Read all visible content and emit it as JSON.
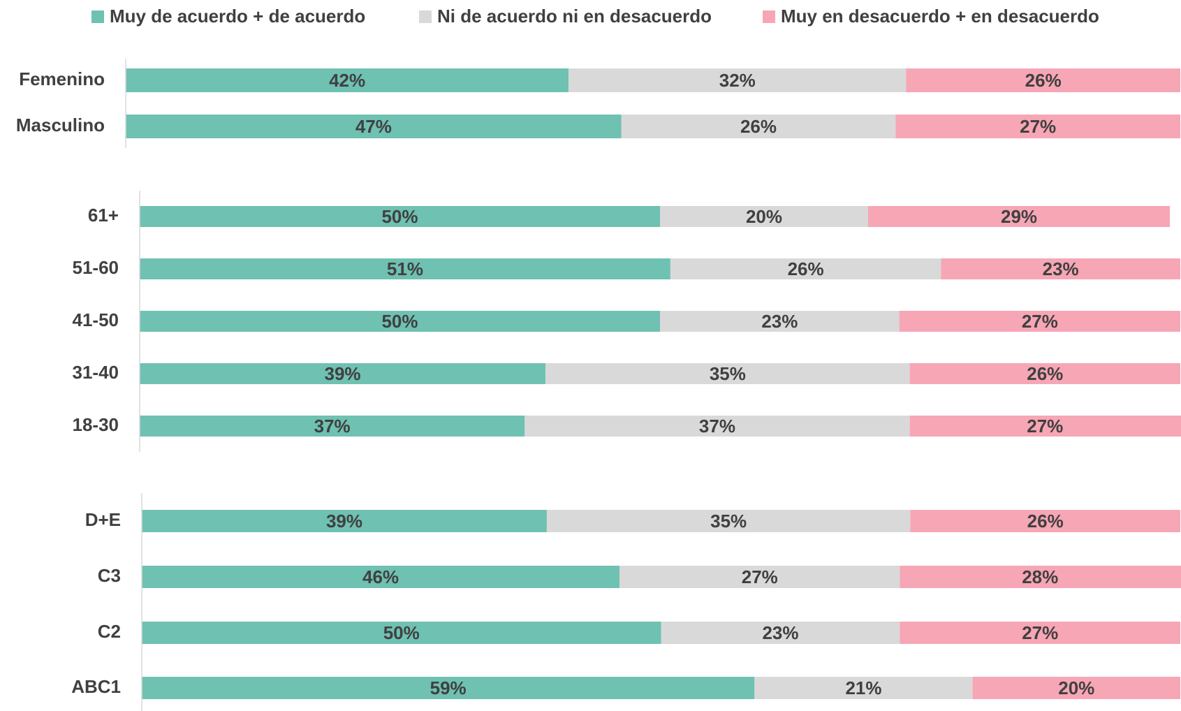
{
  "chart_data": {
    "type": "stacked_bar_100",
    "xlim": [
      0,
      100
    ],
    "categories": [
      [
        "Femenino",
        "Masculino"
      ],
      [
        "61+",
        "51-60",
        "41-50",
        "31-40",
        "18-30"
      ],
      [
        "D+E",
        "C3",
        "C2",
        "ABC1"
      ]
    ],
    "series": [
      {
        "name": "Muy de acuerdo + de acuerdo",
        "color": "#6fc1b2",
        "values": [
          [
            42,
            47
          ],
          [
            50,
            51,
            50,
            39,
            37
          ],
          [
            39,
            46,
            50,
            59
          ]
        ],
        "value_labels": [
          [
            "42%",
            "47%"
          ],
          [
            "50%",
            "51%",
            "50%",
            "39%",
            "37%"
          ],
          [
            "39%",
            "46%",
            "50%",
            "59%"
          ]
        ]
      },
      {
        "name": "Ni de acuerdo ni en desacuerdo",
        "color": "#d9d9d9",
        "values": [
          [
            32,
            26
          ],
          [
            20,
            26,
            23,
            35,
            37
          ],
          [
            35,
            27,
            23,
            21
          ]
        ],
        "value_labels": [
          [
            "32%",
            "26%"
          ],
          [
            "20%",
            "26%",
            "23%",
            "35%",
            "37%"
          ],
          [
            "35%",
            "27%",
            "23%",
            "21%"
          ]
        ]
      },
      {
        "name": "Muy en desacuerdo + en desacuerdo",
        "color": "#f7a6b5",
        "values": [
          [
            26,
            27
          ],
          [
            29,
            23,
            27,
            26,
            27
          ],
          [
            26,
            28,
            27,
            20
          ]
        ],
        "value_labels": [
          [
            "26%",
            "27%"
          ],
          [
            "29%",
            "23%",
            "27%",
            "26%",
            "27%"
          ],
          [
            "26%",
            "28%",
            "27%",
            "20%"
          ]
        ]
      }
    ]
  }
}
